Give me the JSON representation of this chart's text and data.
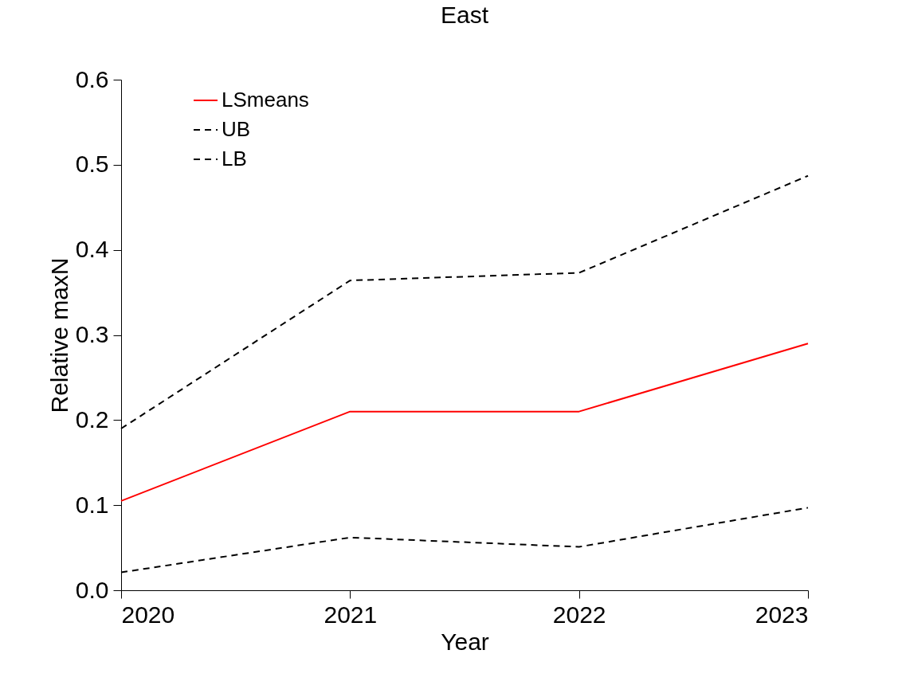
{
  "chart_data": {
    "type": "line",
    "title": "East",
    "xlabel": "Year",
    "ylabel": "Relative maxN",
    "x": [
      2020,
      2021,
      2022,
      2023
    ],
    "xlim": [
      2020,
      2023
    ],
    "xticks": [
      2020,
      2021,
      2022,
      2023
    ],
    "ylim": [
      0,
      0.6
    ],
    "yticks": [
      {
        "value": 0,
        "label": "0.0"
      },
      0.1,
      0.2,
      0.3,
      0.4,
      0.5,
      0.6
    ],
    "grid": false,
    "legend": "top left",
    "marker": "none",
    "series": [
      {
        "name": "LSmeans",
        "color": "#ff0000",
        "line_style": "solid",
        "values": [
          0.105,
          0.21,
          0.21,
          0.29
        ]
      },
      {
        "name": "UB",
        "color": "#000000",
        "line_style": "dashed",
        "values": [
          0.19,
          0.364,
          0.373,
          0.487
        ]
      },
      {
        "name": "LB",
        "color": "#000000",
        "line_style": "dashed",
        "values": [
          0.021,
          0.062,
          0.051,
          0.097
        ]
      }
    ]
  }
}
